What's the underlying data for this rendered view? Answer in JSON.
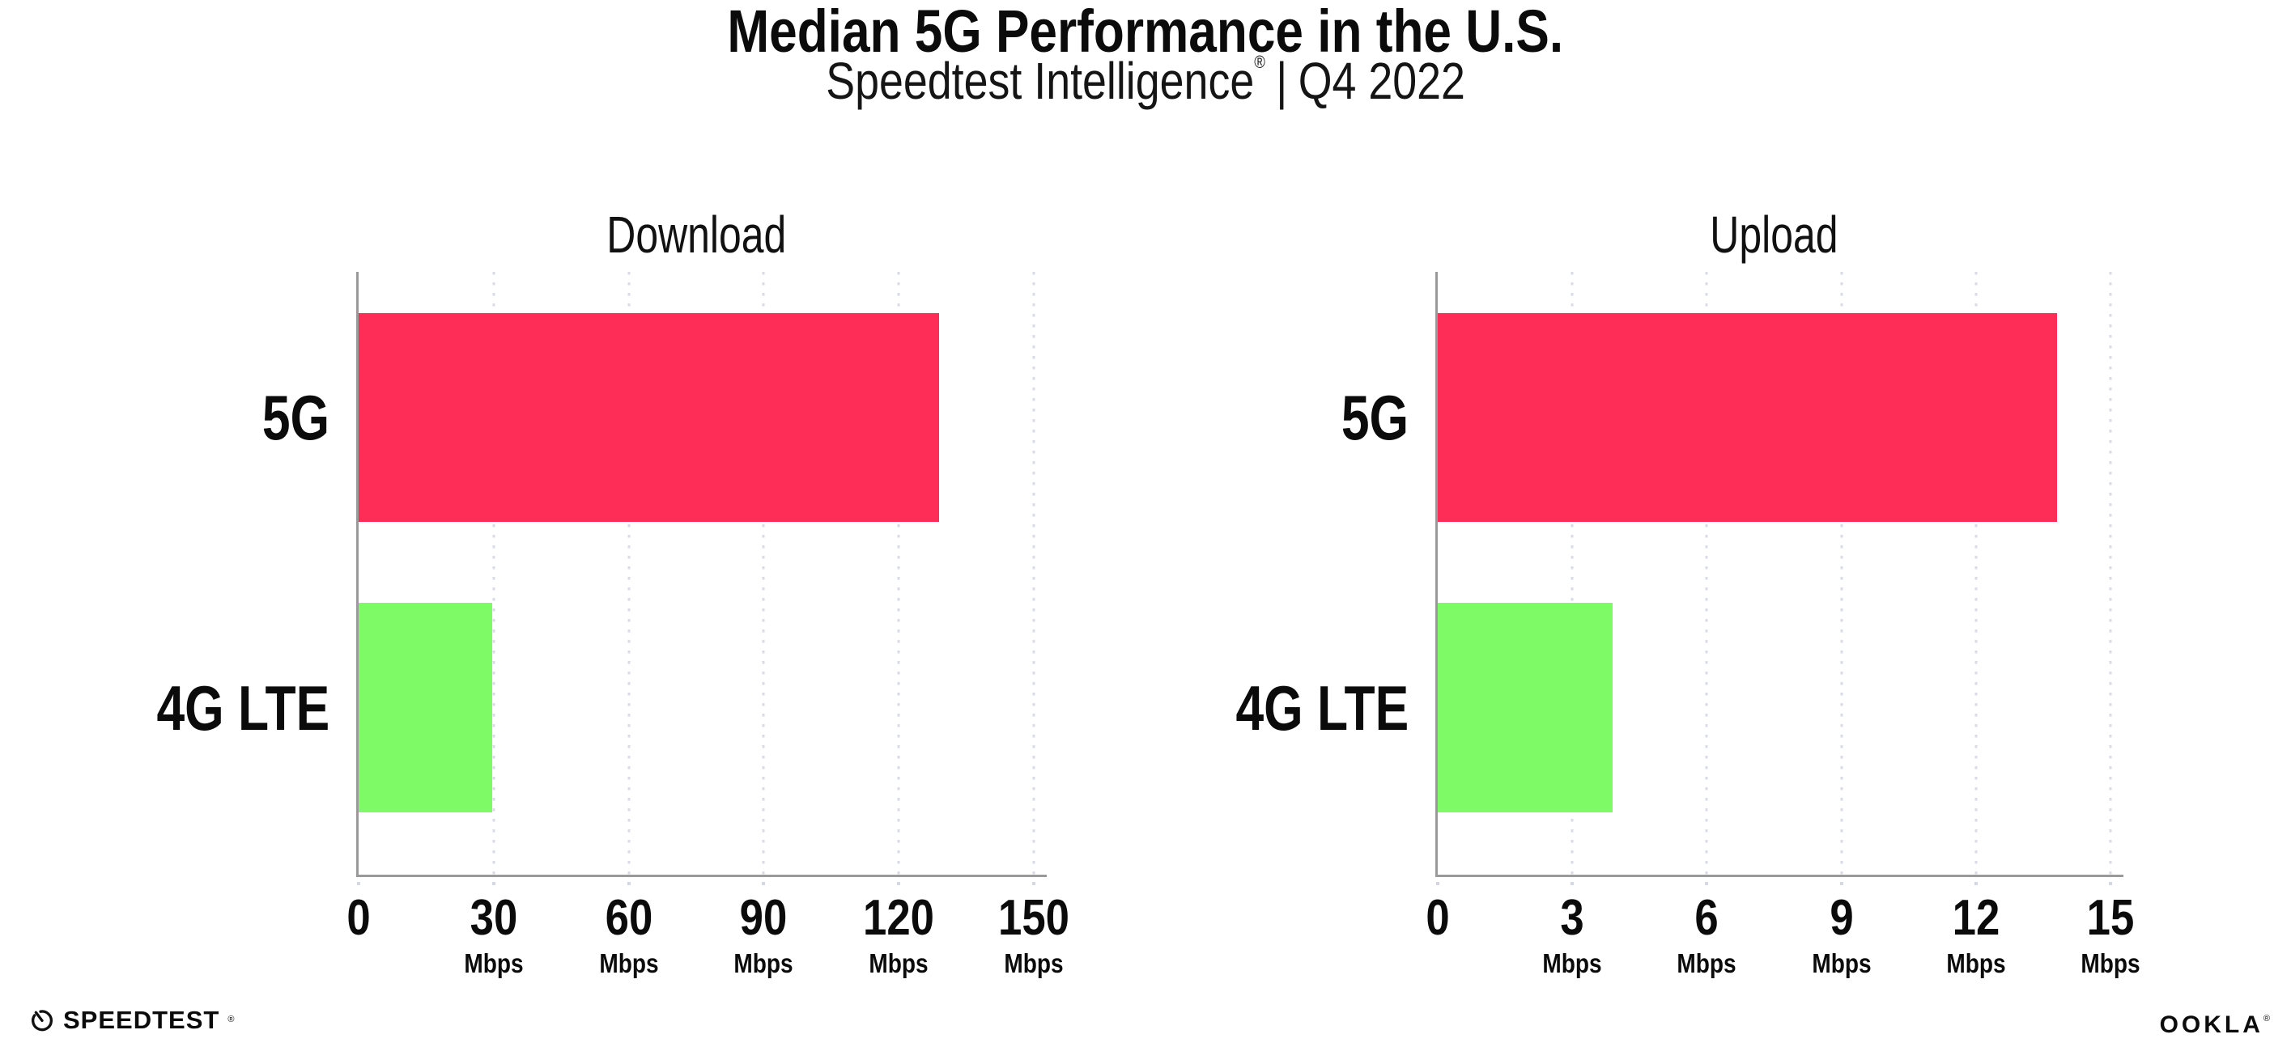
{
  "header": {
    "title": "Median 5G Performance in the U.S.",
    "subtitle_brand": "Speedtest Intelligence",
    "subtitle_reg": "®",
    "subtitle_sep": "|",
    "subtitle_period": "Q4 2022"
  },
  "chart_data": [
    {
      "type": "bar",
      "orientation": "horizontal",
      "title": "Download",
      "categories": [
        "5G",
        "4G LTE"
      ],
      "values": [
        129,
        29.7
      ],
      "unit": "Mbps",
      "xlim": [
        0,
        150
      ],
      "ticks": [
        0,
        30,
        60,
        90,
        120,
        150
      ],
      "bar_colors": [
        "#FD2D58",
        "#7FFA67"
      ],
      "grid": "dotted-vertical",
      "legend": "none"
    },
    {
      "type": "bar",
      "orientation": "horizontal",
      "title": "Upload",
      "categories": [
        "5G",
        "4G LTE"
      ],
      "values": [
        13.8,
        3.9
      ],
      "unit": "Mbps",
      "xlim": [
        0,
        15
      ],
      "ticks": [
        0,
        3,
        6,
        9,
        12,
        15
      ],
      "bar_colors": [
        "#FD2D58",
        "#7FFA67"
      ],
      "grid": "dotted-vertical",
      "legend": "none"
    }
  ],
  "footer": {
    "speedtest_label": "SPEEDTEST",
    "speedtest_reg": "®",
    "speedtest_icon": "speedtest-gauge",
    "ookla_label": "OOKLA",
    "ookla_reg": "®"
  },
  "colors": {
    "bar_5g": "#FD2D58",
    "bar_4g_lte": "#7FFA67",
    "axis": "#9A9A9A",
    "gridline": "#D9DBE7",
    "text": "#0B0B0B",
    "background": "#FFFFFF"
  }
}
